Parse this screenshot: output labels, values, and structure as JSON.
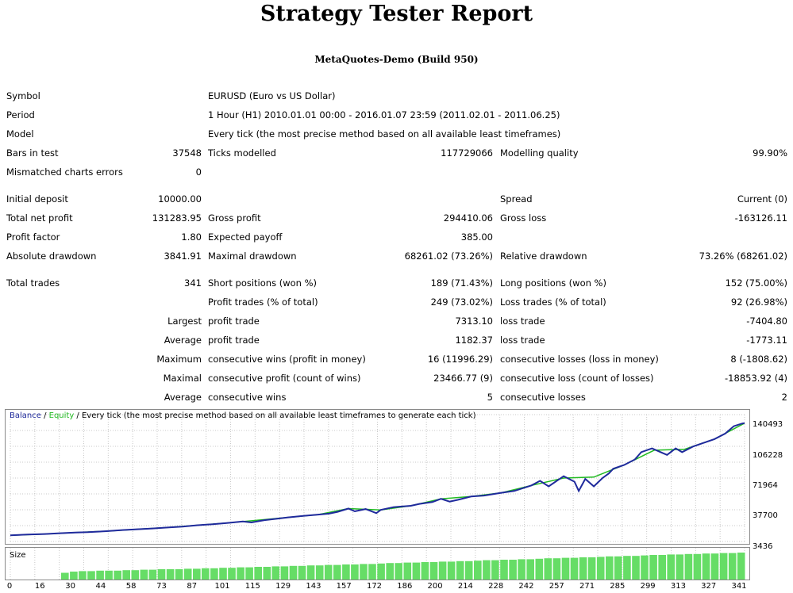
{
  "report": {
    "title": "Strategy Tester Report",
    "subtitle": "MetaQuotes-Demo (Build 950)"
  },
  "rows": [
    {
      "y": 121,
      "cells": [
        {
          "t": "Symbol",
          "x": 8
        },
        {
          "t": "EURUSD (Euro vs US Dollar)",
          "x": 262
        }
      ]
    },
    {
      "y": 145,
      "cells": [
        {
          "t": "Period",
          "x": 8
        },
        {
          "t": "1 Hour (H1) 2010.01.01 00:00 - 2016.01.07 23:59 (2011.02.01 - 2011.06.25)",
          "x": 262
        }
      ]
    },
    {
      "y": 169,
      "cells": [
        {
          "t": "Model",
          "x": 8
        },
        {
          "t": "Every tick (the most precise method based on all available least timeframes)",
          "x": 262
        }
      ]
    },
    {
      "y": 193,
      "cells": [
        {
          "t": "Bars in test",
          "x": 8
        },
        {
          "t": "37548",
          "r": 254
        },
        {
          "t": "Ticks modelled",
          "x": 262
        },
        {
          "t": "117729066",
          "r": 621
        },
        {
          "t": "Modelling quality",
          "x": 630
        },
        {
          "t": "99.90%",
          "r": 992
        }
      ]
    },
    {
      "y": 217,
      "cells": [
        {
          "t": "Mismatched charts errors",
          "x": 8
        },
        {
          "t": "0",
          "r": 254
        }
      ]
    },
    {
      "y": 251,
      "cells": [
        {
          "t": "Initial deposit",
          "x": 8
        },
        {
          "t": "10000.00",
          "r": 254
        },
        {
          "t": "Spread",
          "x": 630
        },
        {
          "t": "Current (0)",
          "r": 992
        }
      ]
    },
    {
      "y": 275,
      "cells": [
        {
          "t": "Total net profit",
          "x": 8
        },
        {
          "t": "131283.95",
          "r": 254
        },
        {
          "t": "Gross profit",
          "x": 262
        },
        {
          "t": "294410.06",
          "r": 621
        },
        {
          "t": "Gross loss",
          "x": 630
        },
        {
          "t": "-163126.11",
          "r": 992
        }
      ]
    },
    {
      "y": 299,
      "cells": [
        {
          "t": "Profit factor",
          "x": 8
        },
        {
          "t": "1.80",
          "r": 254
        },
        {
          "t": "Expected payoff",
          "x": 262
        },
        {
          "t": "385.00",
          "r": 621
        }
      ]
    },
    {
      "y": 323,
      "cells": [
        {
          "t": "Absolute drawdown",
          "x": 8
        },
        {
          "t": "3841.91",
          "r": 254
        },
        {
          "t": "Maximal drawdown",
          "x": 262
        },
        {
          "t": "68261.02 (73.26%)",
          "r": 621
        },
        {
          "t": "Relative drawdown",
          "x": 630
        },
        {
          "t": "73.26% (68261.02)",
          "r": 992
        }
      ]
    },
    {
      "y": 357,
      "cells": [
        {
          "t": "Total trades",
          "x": 8
        },
        {
          "t": "341",
          "r": 254
        },
        {
          "t": "Short positions (won %)",
          "x": 262
        },
        {
          "t": "189 (71.43%)",
          "r": 621
        },
        {
          "t": "Long positions (won %)",
          "x": 630
        },
        {
          "t": "152 (75.00%)",
          "r": 992
        }
      ]
    },
    {
      "y": 381,
      "cells": [
        {
          "t": "Profit trades (% of total)",
          "x": 262
        },
        {
          "t": "249 (73.02%)",
          "r": 621
        },
        {
          "t": "Loss trades (% of total)",
          "x": 630
        },
        {
          "t": "92 (26.98%)",
          "r": 992
        }
      ]
    },
    {
      "y": 405,
      "cells": [
        {
          "t": "Largest",
          "r": 254
        },
        {
          "t": "profit trade",
          "x": 262
        },
        {
          "t": "7313.10",
          "r": 621
        },
        {
          "t": "loss trade",
          "x": 630
        },
        {
          "t": "-7404.80",
          "r": 992
        }
      ]
    },
    {
      "y": 429,
      "cells": [
        {
          "t": "Average",
          "r": 254
        },
        {
          "t": "profit trade",
          "x": 262
        },
        {
          "t": "1182.37",
          "r": 621
        },
        {
          "t": "loss trade",
          "x": 630
        },
        {
          "t": "-1773.11",
          "r": 992
        }
      ]
    },
    {
      "y": 453,
      "cells": [
        {
          "t": "Maximum",
          "r": 254
        },
        {
          "t": "consecutive wins (profit in money)",
          "x": 262
        },
        {
          "t": "16 (11996.29)",
          "r": 621
        },
        {
          "t": "consecutive losses (loss in money)",
          "x": 630
        },
        {
          "t": "8 (-1808.62)",
          "r": 992
        }
      ]
    },
    {
      "y": 477,
      "cells": [
        {
          "t": "Maximal",
          "r": 254
        },
        {
          "t": "consecutive profit (count of wins)",
          "x": 262
        },
        {
          "t": "23466.77 (9)",
          "r": 621
        },
        {
          "t": "consecutive loss (count of losses)",
          "x": 630
        },
        {
          "t": "-18853.92 (4)",
          "r": 992
        }
      ]
    },
    {
      "y": 501,
      "cells": [
        {
          "t": "Average",
          "r": 254
        },
        {
          "t": "consecutive wins",
          "x": 262
        },
        {
          "t": "5",
          "r": 621
        },
        {
          "t": "consecutive losses",
          "x": 630
        },
        {
          "t": "2",
          "r": 992
        }
      ]
    }
  ],
  "chart_data": {
    "type": "line",
    "legend": {
      "balance": "Balance",
      "sep1": " / ",
      "equity": "Equity",
      "rest": " / Every tick (the most precise method based on all available least timeframes to generate each tick)"
    },
    "colors": {
      "balance": "#1f2a9c",
      "equity": "#22bb22",
      "grid": "#c8c8c8",
      "size_bars": "#66dd66",
      "legend_blue": "#1f2a9c",
      "legend_green": "#22bb22"
    },
    "y_ticks": [
      "140493",
      "106228",
      "71964",
      "37700",
      "3436"
    ],
    "ylim": [
      3436,
      140493
    ],
    "x_ticks": [
      "0",
      "16",
      "30",
      "44",
      "58",
      "73",
      "87",
      "101",
      "115",
      "129",
      "143",
      "157",
      "172",
      "186",
      "200",
      "214",
      "228",
      "242",
      "257",
      "271",
      "285",
      "299",
      "313",
      "327",
      "341"
    ],
    "xlim": [
      0,
      341
    ],
    "size_label": "Size",
    "series": [
      {
        "name": "Balance",
        "x": [
          0,
          8,
          16,
          22,
          30,
          36,
          44,
          52,
          58,
          66,
          73,
          80,
          87,
          94,
          101,
          108,
          112,
          118,
          124,
          129,
          136,
          143,
          148,
          152,
          157,
          160,
          165,
          170,
          172,
          178,
          186,
          190,
          196,
          200,
          204,
          208,
          214,
          220,
          228,
          234,
          242,
          246,
          250,
          257,
          262,
          264,
          267,
          271,
          275,
          278,
          280,
          285,
          290,
          293,
          298,
          302,
          305,
          309,
          312,
          317,
          322,
          327,
          332,
          336,
          340,
          341
        ],
        "y": [
          10000,
          11000,
          11500,
          12200,
          13000,
          13500,
          14500,
          15800,
          16500,
          17500,
          18500,
          19500,
          21000,
          22000,
          23500,
          25000,
          24000,
          26500,
          28000,
          29500,
          31000,
          32500,
          33500,
          35500,
          39000,
          36000,
          38500,
          34000,
          37500,
          40500,
          42000,
          44000,
          46000,
          49500,
          46500,
          48500,
          52000,
          53000,
          56000,
          58000,
          64000,
          69000,
          63000,
          74000,
          68000,
          58000,
          71000,
          63000,
          72000,
          77000,
          82000,
          86000,
          92000,
          100000,
          104000,
          100000,
          97000,
          104000,
          100000,
          106000,
          110000,
          114000,
          120000,
          128000,
          131000,
          131283
        ]
      },
      {
        "name": "Equity",
        "x": [
          0,
          16,
          30,
          44,
          58,
          73,
          87,
          101,
          115,
          129,
          143,
          157,
          172,
          186,
          200,
          214,
          228,
          242,
          257,
          271,
          285,
          299,
          313,
          327,
          341
        ],
        "y": [
          10000,
          11500,
          13000,
          14500,
          16500,
          18500,
          21000,
          23500,
          26500,
          29500,
          32500,
          39000,
          37500,
          42000,
          49500,
          52000,
          56000,
          64000,
          72000,
          73000,
          86000,
          102000,
          103000,
          114000,
          131283
        ]
      }
    ],
    "size_bar_heights": [
      0.15,
      0.2,
      0.22,
      0.22,
      0.24,
      0.24,
      0.24,
      0.26,
      0.26,
      0.28,
      0.28,
      0.3,
      0.3,
      0.3,
      0.32,
      0.32,
      0.34,
      0.34,
      0.36,
      0.36,
      0.38,
      0.38,
      0.4,
      0.4,
      0.42,
      0.42,
      0.44,
      0.44,
      0.46,
      0.46,
      0.48,
      0.48,
      0.5,
      0.5,
      0.52,
      0.52,
      0.54,
      0.56,
      0.56,
      0.58,
      0.58,
      0.6,
      0.6,
      0.62,
      0.62,
      0.64,
      0.64,
      0.66,
      0.68,
      0.68,
      0.7,
      0.7,
      0.72,
      0.72,
      0.74,
      0.76,
      0.76,
      0.78,
      0.78,
      0.8,
      0.8,
      0.82,
      0.84,
      0.84,
      0.86,
      0.86,
      0.88,
      0.9,
      0.9,
      0.92,
      0.92,
      0.94,
      0.94,
      0.96,
      0.96,
      0.98,
      0.98,
      1.0
    ]
  }
}
